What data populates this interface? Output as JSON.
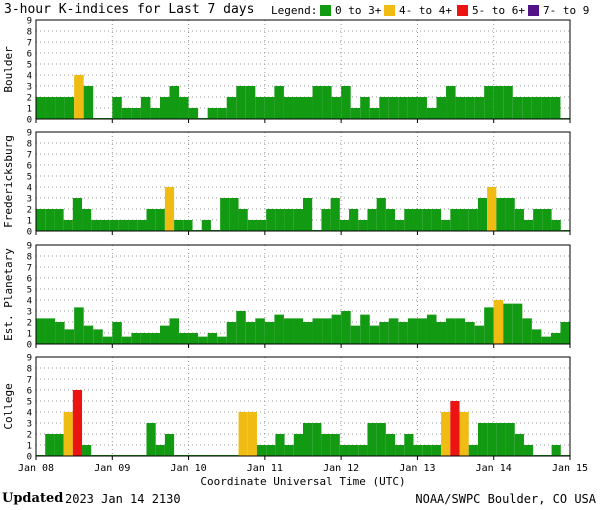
{
  "header": {
    "title": "3-hour K-indices for Last 7 days",
    "legend_label": "Legend:"
  },
  "legend": [
    {
      "label": "0 to 3+",
      "color": "#139a13"
    },
    {
      "label": "4- to 4+",
      "color": "#f0bc13"
    },
    {
      "label": "5- to 6+",
      "color": "#ec1313"
    },
    {
      "label": "7- to 9",
      "color": "#521386"
    }
  ],
  "chart_data": [
    {
      "type": "bar",
      "ylabel": "Boulder",
      "ylim": [
        0,
        9
      ],
      "values": [
        2,
        2,
        2,
        2,
        4,
        3,
        0,
        0,
        2,
        1,
        1,
        2,
        1,
        2,
        3,
        2,
        1,
        0,
        1,
        1,
        2,
        3,
        3,
        2,
        2,
        3,
        2,
        2,
        2,
        3,
        3,
        2,
        3,
        1,
        2,
        1,
        2,
        2,
        2,
        2,
        2,
        1,
        2,
        3,
        2,
        2,
        2,
        3,
        3,
        3,
        2,
        2,
        2,
        2,
        2,
        0
      ]
    },
    {
      "type": "bar",
      "ylabel": "Fredericksburg",
      "ylim": [
        0,
        9
      ],
      "values": [
        2,
        2,
        2,
        1,
        3,
        2,
        1,
        1,
        1,
        1,
        1,
        1,
        2,
        2,
        4,
        1,
        1,
        0,
        1,
        0,
        3,
        3,
        2,
        1,
        1,
        2,
        2,
        2,
        2,
        3,
        0,
        2,
        3,
        1,
        2,
        1,
        2,
        3,
        2,
        1,
        2,
        2,
        2,
        2,
        1,
        2,
        2,
        2,
        3,
        4,
        3,
        3,
        2,
        1,
        2,
        2,
        1,
        0
      ]
    },
    {
      "type": "bar",
      "ylabel": "Est. Planetary",
      "ylim": [
        0,
        9
      ],
      "values": [
        2.33,
        2.33,
        2,
        1.33,
        3.33,
        1.67,
        1.33,
        0.67,
        2,
        0.67,
        1,
        1,
        1,
        1.67,
        2.33,
        1,
        1,
        0.67,
        1,
        0.67,
        2,
        3,
        2,
        2.33,
        2,
        2.67,
        2.33,
        2.33,
        2,
        2.33,
        2.33,
        2.67,
        3,
        1.67,
        2.67,
        1.67,
        2,
        2.33,
        2,
        2.33,
        2.33,
        2.67,
        2,
        2.33,
        2.33,
        2,
        1.67,
        3.33,
        4,
        3.67,
        3.67,
        2.33,
        1.33,
        0.67,
        1,
        2
      ]
    },
    {
      "type": "bar",
      "ylabel": "College",
      "ylim": [
        0,
        9
      ],
      "values": [
        0,
        2,
        2,
        4,
        6,
        1,
        0,
        0,
        0,
        0,
        0,
        0,
        3,
        1,
        2,
        0,
        0,
        0,
        0,
        0,
        0,
        0,
        4,
        4,
        1,
        1,
        2,
        1,
        2,
        3,
        3,
        2,
        2,
        1,
        1,
        1,
        3,
        3,
        2,
        1,
        2,
        1,
        1,
        1,
        4,
        5,
        4,
        1,
        3,
        3,
        3,
        3,
        2,
        1,
        0,
        0,
        1,
        0
      ]
    }
  ],
  "x_ticks": [
    "Jan 08",
    "Jan 09",
    "Jan 10",
    "Jan 11",
    "Jan 12",
    "Jan 13",
    "Jan 14",
    "Jan 15"
  ],
  "x_title": "Coordinate Universal Time (UTC)",
  "footer": {
    "updated_label": "Updated",
    "updated_time": "2023 Jan 14 2130",
    "credit": "NOAA/SWPC Boulder, CO USA"
  }
}
